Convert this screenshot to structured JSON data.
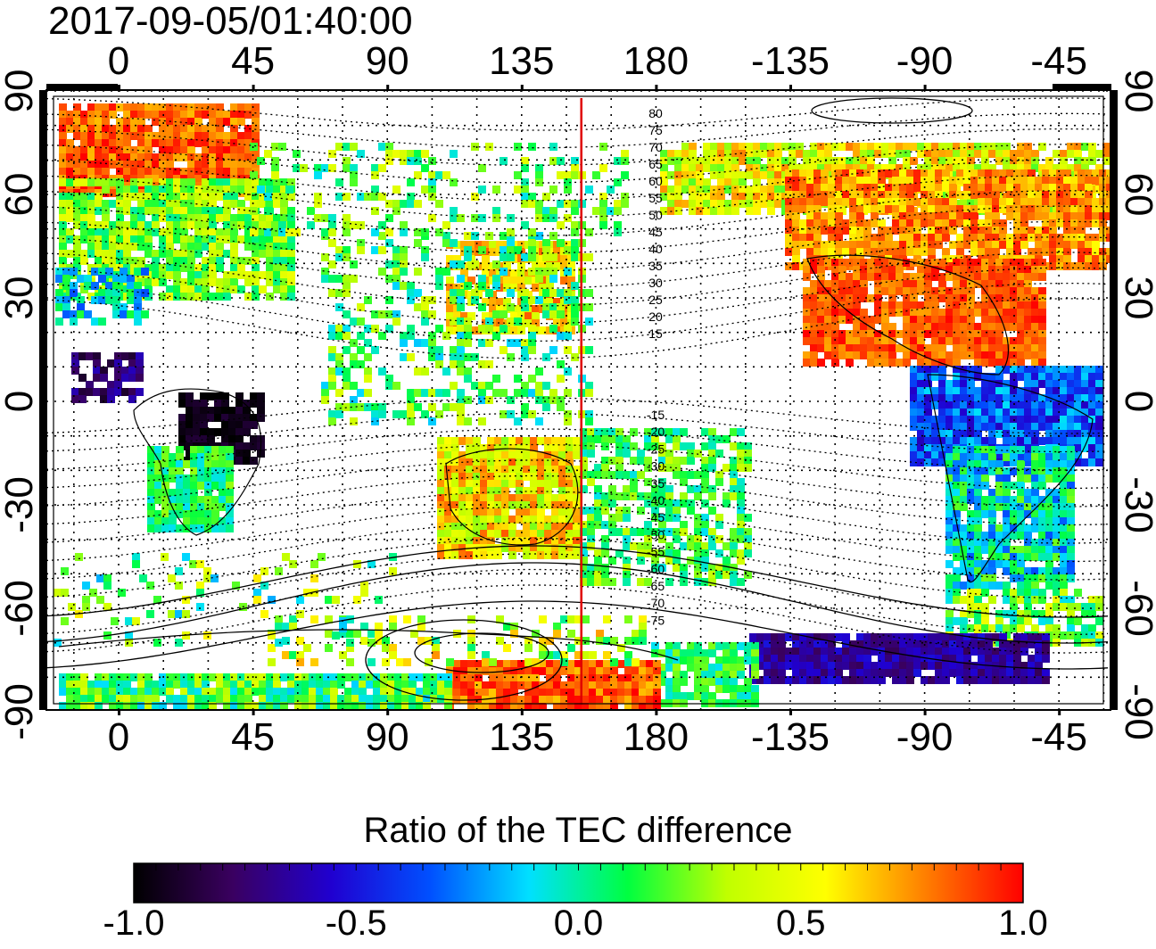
{
  "title": "2017-09-05/01:40:00",
  "map": {
    "x_ticks_top": [
      "0",
      "45",
      "90",
      "135",
      "180",
      "-135",
      "-90",
      "-45"
    ],
    "x_ticks_bottom": [
      "0",
      "45",
      "90",
      "135",
      "180",
      "-135",
      "-90",
      "-45"
    ],
    "y_ticks_left": [
      "90",
      "60",
      "30",
      "0",
      "-30",
      "-60",
      "-90"
    ],
    "y_ticks_right": [
      "90",
      "60",
      "30",
      "0",
      "-30",
      "-60",
      "-90"
    ],
    "contour_labels_north": [
      "80",
      "75",
      "70",
      "65",
      "60",
      "55",
      "50",
      "45",
      "40",
      "35",
      "30",
      "25",
      "20",
      "15"
    ],
    "contour_labels_south": [
      "-15",
      "-20",
      "-25",
      "-30",
      "-35",
      "-40",
      "-45",
      "-50",
      "-55",
      "-60",
      "-65",
      "-70",
      "-75"
    ],
    "terminator_line_color": "#e00000",
    "terminator_longitude": 155
  },
  "colorbar": {
    "title": "Ratio of the TEC difference",
    "ticks": [
      "-1.0",
      "-0.5",
      "0.0",
      "0.5",
      "1.0"
    ],
    "min": -1.0,
    "max": 1.0,
    "colors": [
      "#000000",
      "#3a0060",
      "#2000d0",
      "#0050ff",
      "#00e0ff",
      "#00ff40",
      "#c0ff00",
      "#ffff00",
      "#ff8000",
      "#ff0000"
    ]
  }
}
